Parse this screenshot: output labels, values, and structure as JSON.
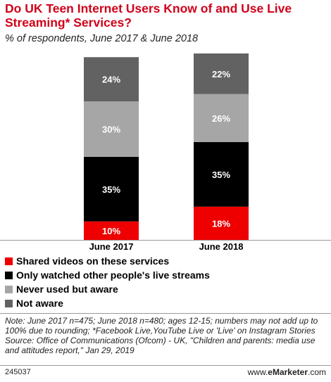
{
  "title": "Do UK Teen Internet Users Know of and Use Live Streaming* Services?",
  "subtitle": "% of respondents, June 2017 & June 2018",
  "chart_data": {
    "type": "bar",
    "stacked": true,
    "categories": [
      "June 2017",
      "June 2018"
    ],
    "series": [
      {
        "name": "Shared videos on these services",
        "color": "#ee0000",
        "values": [
          10,
          18
        ]
      },
      {
        "name": "Only watched other people's live streams",
        "color": "#000000",
        "values": [
          35,
          35
        ]
      },
      {
        "name": "Never used but aware",
        "color": "#a6a6a6",
        "values": [
          30,
          26
        ]
      },
      {
        "name": "Not aware",
        "color": "#626262",
        "values": [
          24,
          22
        ]
      }
    ],
    "value_suffix": "%",
    "label_color": "#ffffff",
    "legend_position": "bottom-left",
    "grid": false
  },
  "note": "Note: June 2017 n=475; June 2018 n=480; ages 12-15; numbers may not add up to 100% due to rounding; *Facebook Live,YouTube Live or 'Live' on Instagram Stories",
  "source": "Source: Office of Communications (Ofcom) - UK, \"Children and parents: media use and attitudes report,\" Jan 29, 2019",
  "footer": {
    "id": "245037",
    "brand_prefix": "www.",
    "brand_bold": "eMarketer",
    "brand_suffix": ".com"
  }
}
